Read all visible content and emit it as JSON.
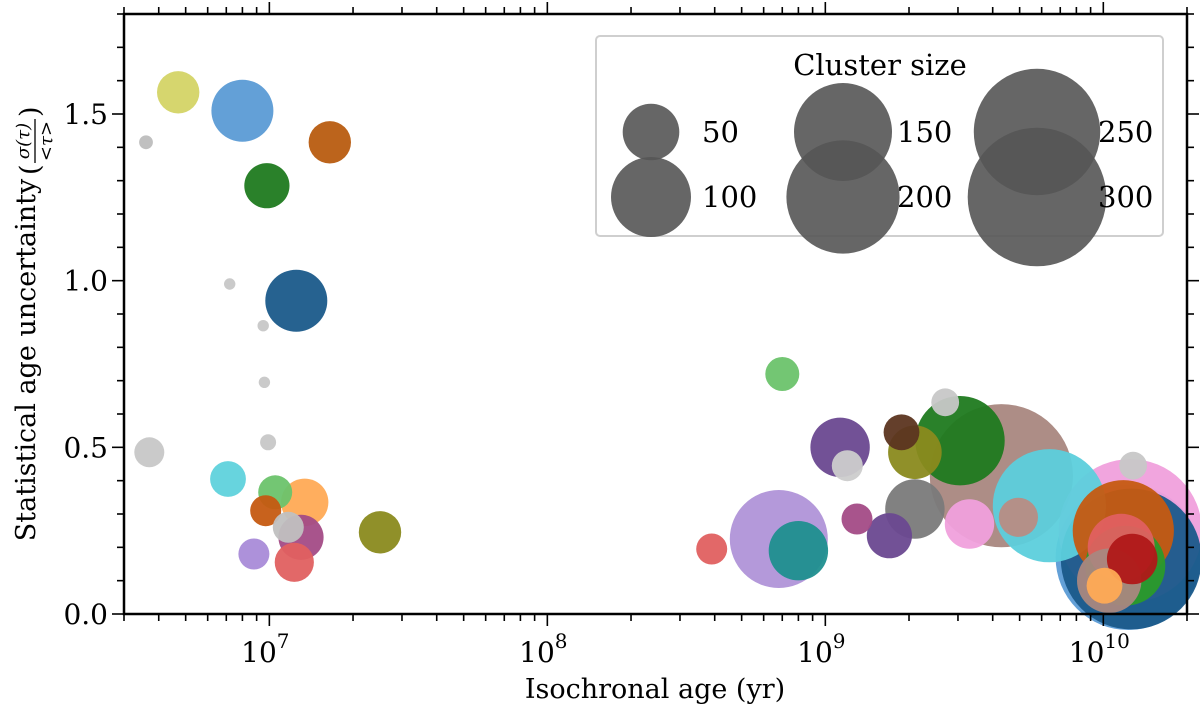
{
  "chart_data": {
    "type": "scatter",
    "title": "",
    "xlabel": "Isochronal age (yr)",
    "ylabel_text": "Statistical age uncertainty",
    "ylabel_fraction": {
      "numerator": "σ(τ)",
      "denominator": "<τ>"
    },
    "xscale": "log",
    "xlim": [
      3000000,
      20000000000
    ],
    "ylim": [
      0.0,
      1.8
    ],
    "x_major_ticks": [
      {
        "value": 10000000,
        "base": "10",
        "exp": "7"
      },
      {
        "value": 100000000,
        "base": "10",
        "exp": "8"
      },
      {
        "value": 1000000000,
        "base": "10",
        "exp": "9"
      },
      {
        "value": 10000000000,
        "base": "10",
        "exp": "10"
      }
    ],
    "y_ticks": [
      {
        "value": 0.0,
        "label": "0.0"
      },
      {
        "value": 0.5,
        "label": "0.5"
      },
      {
        "value": 1.0,
        "label": "1.0"
      },
      {
        "value": 1.5,
        "label": "1.5"
      }
    ],
    "y_minor_step": 0.1,
    "legend": {
      "title": "Cluster size",
      "placement": "top-right",
      "color": "#555555",
      "entries": [
        {
          "label": "50",
          "size": 50
        },
        {
          "label": "100",
          "size": 100
        },
        {
          "label": "150",
          "size": 150
        },
        {
          "label": "200",
          "size": 200
        },
        {
          "label": "250",
          "size": 250
        },
        {
          "label": "300",
          "size": 300
        }
      ]
    },
    "points": [
      {
        "x": 3600000,
        "y": 1.415,
        "size": 3,
        "color": "#bdbdbd"
      },
      {
        "x": 3700000,
        "y": 0.485,
        "size": 14,
        "color": "#c7c7c7"
      },
      {
        "x": 4700000,
        "y": 1.565,
        "size": 28,
        "color": "#d4d466"
      },
      {
        "x": 7100000,
        "y": 0.405,
        "size": 20,
        "color": "#5fd2dc"
      },
      {
        "x": 7200000,
        "y": 0.99,
        "size": 2,
        "color": "#c7c7c7"
      },
      {
        "x": 8000000,
        "y": 1.51,
        "size": 60,
        "color": "#5b9bd5"
      },
      {
        "x": 8800000,
        "y": 0.18,
        "size": 15,
        "color": "#a98bd8"
      },
      {
        "x": 9500000,
        "y": 0.865,
        "size": 2,
        "color": "#c7c7c7"
      },
      {
        "x": 9600000,
        "y": 0.695,
        "size": 2,
        "color": "#c7c7c7"
      },
      {
        "x": 9700000,
        "y": 0.31,
        "size": 15,
        "color": "#c55a11"
      },
      {
        "x": 9800000,
        "y": 1.285,
        "size": 32,
        "color": "#1f7a1f"
      },
      {
        "x": 9900000,
        "y": 0.515,
        "size": 4,
        "color": "#c7c7c7"
      },
      {
        "x": 10500000,
        "y": 0.365,
        "size": 18,
        "color": "#6cc36c"
      },
      {
        "x": 11700000,
        "y": 0.26,
        "size": 15,
        "color": "#c0c0c0"
      },
      {
        "x": 12300000,
        "y": 0.155,
        "size": 24,
        "color": "#e06060"
      },
      {
        "x": 12500000,
        "y": 0.94,
        "size": 60,
        "color": "#1a5a8a"
      },
      {
        "x": 13000000,
        "y": 0.23,
        "size": 32,
        "color": "#a34b86"
      },
      {
        "x": 13400000,
        "y": 0.335,
        "size": 35,
        "color": "#ffaa55"
      },
      {
        "x": 16500000,
        "y": 1.415,
        "size": 28,
        "color": "#b85c10"
      },
      {
        "x": 25000000,
        "y": 0.245,
        "size": 28,
        "color": "#8a8a1e"
      },
      {
        "x": 390000000,
        "y": 0.195,
        "size": 15,
        "color": "#e06060"
      },
      {
        "x": 680000000,
        "y": 0.225,
        "size": 150,
        "color": "#b093d8"
      },
      {
        "x": 700000000,
        "y": 0.72,
        "size": 18,
        "color": "#6cc36c"
      },
      {
        "x": 800000000,
        "y": 0.19,
        "size": 55,
        "color": "#1f8f8f"
      },
      {
        "x": 1130000000,
        "y": 0.5,
        "size": 55,
        "color": "#6a4890"
      },
      {
        "x": 1200000000,
        "y": 0.445,
        "size": 15,
        "color": "#cccccc"
      },
      {
        "x": 1300000000,
        "y": 0.285,
        "size": 15,
        "color": "#a34b86"
      },
      {
        "x": 1700000000,
        "y": 0.235,
        "size": 32,
        "color": "#6a4890"
      },
      {
        "x": 1880000000,
        "y": 0.545,
        "size": 20,
        "color": "#5c3520"
      },
      {
        "x": 2100000000,
        "y": 0.485,
        "size": 45,
        "color": "#8a8a1e"
      },
      {
        "x": 2100000000,
        "y": 0.315,
        "size": 55,
        "color": "#7a7a7a"
      },
      {
        "x": 2700000000,
        "y": 0.635,
        "size": 12,
        "color": "#c7c7c7"
      },
      {
        "x": 3050000000,
        "y": 0.52,
        "size": 125,
        "color": "#1f7a1f"
      },
      {
        "x": 3300000000,
        "y": 0.27,
        "size": 38,
        "color": "#f0a0dc"
      },
      {
        "x": 4300000000,
        "y": 0.415,
        "size": 320,
        "color": "#a98780"
      },
      {
        "x": 4950000000,
        "y": 0.29,
        "size": 24,
        "color": "#b88c84"
      },
      {
        "x": 6400000000,
        "y": 0.325,
        "size": 200,
        "color": "#5ccfdc"
      },
      {
        "x": 10100000000,
        "y": 0.085,
        "size": 20,
        "color": "#ffaa55"
      },
      {
        "x": 10500000000,
        "y": 0.1,
        "size": 65,
        "color": "#a98780"
      },
      {
        "x": 11600000000,
        "y": 0.2,
        "size": 70,
        "color": "#e06060"
      },
      {
        "x": 12300000000,
        "y": 0.17,
        "size": 330,
        "color": "#5b9bd5"
      },
      {
        "x": 12500000000,
        "y": 0.25,
        "size": 320,
        "color": "#f0a0dc"
      },
      {
        "x": 11800000000,
        "y": 0.25,
        "size": 160,
        "color": "#c55a11"
      },
      {
        "x": 12600000000,
        "y": 0.165,
        "size": 310,
        "color": "#1a5a8a"
      },
      {
        "x": 12000000000,
        "y": 0.145,
        "size": 100,
        "color": "#2a9a2a"
      },
      {
        "x": 12700000000,
        "y": 0.165,
        "size": 40,
        "color": "#b01818"
      },
      {
        "x": 12800000000,
        "y": 0.445,
        "size": 12,
        "color": "#c7c7c7"
      }
    ]
  }
}
